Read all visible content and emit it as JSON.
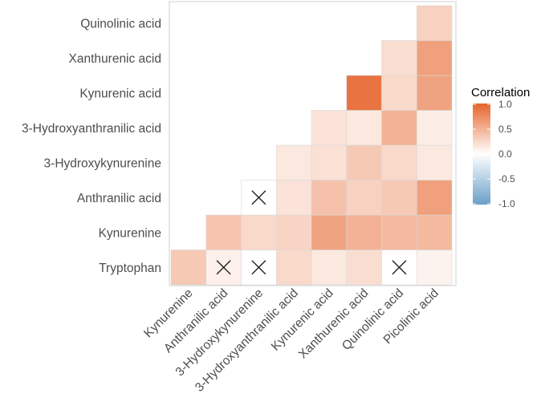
{
  "chart_data": {
    "type": "heatmap",
    "title": "",
    "xlabel": "",
    "ylabel": "",
    "x_categories": [
      "Kynurenine",
      "Anthranilic acid",
      "3-Hydroxykynurenine",
      "3-Hydroxyanthranilic acid",
      "Kynurenic acid",
      "Xanthurenic acid",
      "Quinolinic acid",
      "Picolinic acid"
    ],
    "y_categories": [
      "Tryptophan",
      "Kynurenine",
      "Anthranilic acid",
      "3-Hydroxykynurenine",
      "3-Hydroxyanthranilic acid",
      "Kynurenic acid",
      "Xanthurenic acid",
      "Quinolinic acid"
    ],
    "cells": [
      {
        "row": "Tryptophan",
        "col": "Kynurenine",
        "value": 0.35,
        "crossed": false
      },
      {
        "row": "Tryptophan",
        "col": "Anthranilic acid",
        "value": 0.1,
        "crossed": true
      },
      {
        "row": "Tryptophan",
        "col": "3-Hydroxykynurenine",
        "value": 0.0,
        "crossed": true
      },
      {
        "row": "Tryptophan",
        "col": "3-Hydroxyanthranilic acid",
        "value": 0.25,
        "crossed": false
      },
      {
        "row": "Tryptophan",
        "col": "Kynurenic acid",
        "value": 0.15,
        "crossed": false
      },
      {
        "row": "Tryptophan",
        "col": "Xanthurenic acid",
        "value": 0.22,
        "crossed": false
      },
      {
        "row": "Tryptophan",
        "col": "Quinolinic acid",
        "value": 0.0,
        "crossed": true
      },
      {
        "row": "Tryptophan",
        "col": "Picolinic acid",
        "value": 0.08,
        "crossed": false
      },
      {
        "row": "Kynurenine",
        "col": "Anthranilic acid",
        "value": 0.38,
        "crossed": false
      },
      {
        "row": "Kynurenine",
        "col": "3-Hydroxykynurenine",
        "value": 0.25,
        "crossed": false
      },
      {
        "row": "Kynurenine",
        "col": "3-Hydroxyanthranilic acid",
        "value": 0.28,
        "crossed": false
      },
      {
        "row": "Kynurenine",
        "col": "Kynurenic acid",
        "value": 0.6,
        "crossed": false
      },
      {
        "row": "Kynurenine",
        "col": "Xanthurenic acid",
        "value": 0.5,
        "crossed": false
      },
      {
        "row": "Kynurenine",
        "col": "Quinolinic acid",
        "value": 0.45,
        "crossed": false
      },
      {
        "row": "Kynurenine",
        "col": "Picolinic acid",
        "value": 0.45,
        "crossed": false
      },
      {
        "row": "Anthranilic acid",
        "col": "3-Hydroxykynurenine",
        "value": 0.0,
        "crossed": true
      },
      {
        "row": "Anthranilic acid",
        "col": "3-Hydroxyanthranilic acid",
        "value": 0.18,
        "crossed": false
      },
      {
        "row": "Anthranilic acid",
        "col": "Kynurenic acid",
        "value": 0.4,
        "crossed": false
      },
      {
        "row": "Anthranilic acid",
        "col": "Xanthurenic acid",
        "value": 0.3,
        "crossed": false
      },
      {
        "row": "Anthranilic acid",
        "col": "Quinolinic acid",
        "value": 0.35,
        "crossed": false
      },
      {
        "row": "Anthranilic acid",
        "col": "Picolinic acid",
        "value": 0.62,
        "crossed": false
      },
      {
        "row": "3-Hydroxykynurenine",
        "col": "3-Hydroxyanthranilic acid",
        "value": 0.15,
        "crossed": false
      },
      {
        "row": "3-Hydroxykynurenine",
        "col": "Kynurenic acid",
        "value": 0.2,
        "crossed": false
      },
      {
        "row": "3-Hydroxykynurenine",
        "col": "Xanthurenic acid",
        "value": 0.35,
        "crossed": false
      },
      {
        "row": "3-Hydroxykynurenine",
        "col": "Quinolinic acid",
        "value": 0.25,
        "crossed": false
      },
      {
        "row": "3-Hydroxykynurenine",
        "col": "Picolinic acid",
        "value": 0.15,
        "crossed": false
      },
      {
        "row": "3-Hydroxyanthranilic acid",
        "col": "Kynurenic acid",
        "value": 0.18,
        "crossed": false
      },
      {
        "row": "3-Hydroxyanthranilic acid",
        "col": "Xanthurenic acid",
        "value": 0.15,
        "crossed": false
      },
      {
        "row": "3-Hydroxyanthranilic acid",
        "col": "Quinolinic acid",
        "value": 0.5,
        "crossed": false
      },
      {
        "row": "3-Hydroxyanthranilic acid",
        "col": "Picolinic acid",
        "value": 0.12,
        "crossed": false
      },
      {
        "row": "Kynurenic acid",
        "col": "Xanthurenic acid",
        "value": 0.9,
        "crossed": false
      },
      {
        "row": "Kynurenic acid",
        "col": "Quinolinic acid",
        "value": 0.25,
        "crossed": false
      },
      {
        "row": "Kynurenic acid",
        "col": "Picolinic acid",
        "value": 0.6,
        "crossed": false
      },
      {
        "row": "Xanthurenic acid",
        "col": "Quinolinic acid",
        "value": 0.22,
        "crossed": false
      },
      {
        "row": "Xanthurenic acid",
        "col": "Picolinic acid",
        "value": 0.62,
        "crossed": false
      },
      {
        "row": "Quinolinic acid",
        "col": "Picolinic acid",
        "value": 0.3,
        "crossed": false
      }
    ],
    "legend": {
      "title": "Correlation",
      "range": [
        -1.0,
        1.0
      ],
      "ticks": [
        "1.0",
        "0.5",
        "0.0",
        "-0.5",
        "-1.0"
      ],
      "position": "right"
    },
    "colors": {
      "low": "#6a9fc7",
      "mid": "#ffffff",
      "high": "#e6652c",
      "border": "#d9d9d9"
    }
  }
}
